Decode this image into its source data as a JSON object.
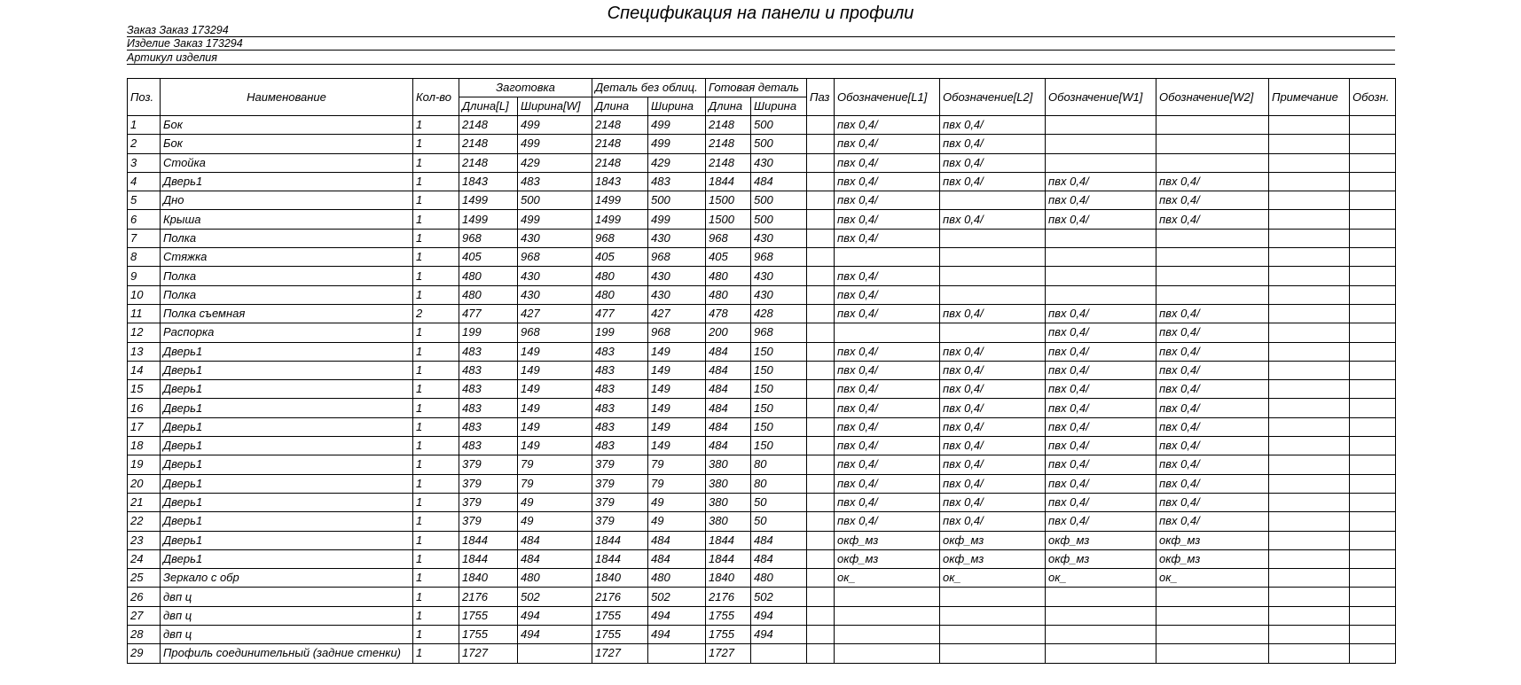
{
  "title": "Спецификация на панели и профили",
  "info": {
    "order": "Заказ Заказ 173294",
    "product": "Изделие Заказ 173294",
    "article": "Артикул изделия"
  },
  "table": {
    "headers": {
      "pos": "Поз.",
      "name": "Наименование",
      "qty": "Кол-во",
      "blank": "Заготовка",
      "blank_length": "Длина[L]",
      "blank_width": "Ширина[W]",
      "raw": "Деталь без облиц.",
      "raw_length": "Длина",
      "raw_width": "Ширина",
      "finished": "Готовая деталь",
      "finished_length": "Длина",
      "finished_width": "Ширина",
      "groove": "Паз",
      "edge_l1": "Обозначение[L1]",
      "edge_l2": "Обозначение[L2]",
      "edge_w1": "Обозначение[W1]",
      "edge_w2": "Обозначение[W2]",
      "note": "Примечание",
      "desig": "Обозн."
    },
    "rows": [
      [
        "1",
        "Бок",
        "1",
        "2148",
        "499",
        "2148",
        "499",
        "2148",
        "500",
        "",
        "пвх 0,4/",
        "пвх 0,4/",
        "",
        "",
        "",
        ""
      ],
      [
        "2",
        "Бок",
        "1",
        "2148",
        "499",
        "2148",
        "499",
        "2148",
        "500",
        "",
        "пвх 0,4/",
        "пвх 0,4/",
        "",
        "",
        "",
        ""
      ],
      [
        "3",
        "Стойка",
        "1",
        "2148",
        "429",
        "2148",
        "429",
        "2148",
        "430",
        "",
        "пвх 0,4/",
        "пвх 0,4/",
        "",
        "",
        "",
        ""
      ],
      [
        "4",
        "Дверь1",
        "1",
        "1843",
        "483",
        "1843",
        "483",
        "1844",
        "484",
        "",
        "пвх 0,4/",
        "пвх 0,4/",
        "пвх 0,4/",
        "пвх 0,4/",
        "",
        ""
      ],
      [
        "5",
        "Дно",
        "1",
        "1499",
        "500",
        "1499",
        "500",
        "1500",
        "500",
        "",
        "пвх 0,4/",
        "",
        "пвх 0,4/",
        "пвх 0,4/",
        "",
        ""
      ],
      [
        "6",
        "Крыша",
        "1",
        "1499",
        "499",
        "1499",
        "499",
        "1500",
        "500",
        "",
        "пвх 0,4/",
        "пвх 0,4/",
        "пвх 0,4/",
        "пвх 0,4/",
        "",
        ""
      ],
      [
        "7",
        "Полка",
        "1",
        "968",
        "430",
        "968",
        "430",
        "968",
        "430",
        "",
        "пвх 0,4/",
        "",
        "",
        "",
        "",
        ""
      ],
      [
        "8",
        "Стяжка",
        "1",
        "405",
        "968",
        "405",
        "968",
        "405",
        "968",
        "",
        "",
        "",
        "",
        "",
        "",
        ""
      ],
      [
        "9",
        "Полка",
        "1",
        "480",
        "430",
        "480",
        "430",
        "480",
        "430",
        "",
        "пвх 0,4/",
        "",
        "",
        "",
        "",
        ""
      ],
      [
        "10",
        "Полка",
        "1",
        "480",
        "430",
        "480",
        "430",
        "480",
        "430",
        "",
        "пвх 0,4/",
        "",
        "",
        "",
        "",
        ""
      ],
      [
        "11",
        "Полка съемная",
        "2",
        "477",
        "427",
        "477",
        "427",
        "478",
        "428",
        "",
        "пвх 0,4/",
        "пвх 0,4/",
        "пвх 0,4/",
        "пвх 0,4/",
        "",
        ""
      ],
      [
        "12",
        "Распорка",
        "1",
        "199",
        "968",
        "199",
        "968",
        "200",
        "968",
        "",
        "",
        "",
        "пвх 0,4/",
        "пвх 0,4/",
        "",
        ""
      ],
      [
        "13",
        "Дверь1",
        "1",
        "483",
        "149",
        "483",
        "149",
        "484",
        "150",
        "",
        "пвх 0,4/",
        "пвх 0,4/",
        "пвх 0,4/",
        "пвх 0,4/",
        "",
        ""
      ],
      [
        "14",
        "Дверь1",
        "1",
        "483",
        "149",
        "483",
        "149",
        "484",
        "150",
        "",
        "пвх 0,4/",
        "пвх 0,4/",
        "пвх 0,4/",
        "пвх 0,4/",
        "",
        ""
      ],
      [
        "15",
        "Дверь1",
        "1",
        "483",
        "149",
        "483",
        "149",
        "484",
        "150",
        "",
        "пвх 0,4/",
        "пвх 0,4/",
        "пвх 0,4/",
        "пвх 0,4/",
        "",
        ""
      ],
      [
        "16",
        "Дверь1",
        "1",
        "483",
        "149",
        "483",
        "149",
        "484",
        "150",
        "",
        "пвх 0,4/",
        "пвх 0,4/",
        "пвх 0,4/",
        "пвх 0,4/",
        "",
        ""
      ],
      [
        "17",
        "Дверь1",
        "1",
        "483",
        "149",
        "483",
        "149",
        "484",
        "150",
        "",
        "пвх 0,4/",
        "пвх 0,4/",
        "пвх 0,4/",
        "пвх 0,4/",
        "",
        ""
      ],
      [
        "18",
        "Дверь1",
        "1",
        "483",
        "149",
        "483",
        "149",
        "484",
        "150",
        "",
        "пвх 0,4/",
        "пвх 0,4/",
        "пвх 0,4/",
        "пвх 0,4/",
        "",
        ""
      ],
      [
        "19",
        "Дверь1",
        "1",
        "379",
        "79",
        "379",
        "79",
        "380",
        "80",
        "",
        "пвх 0,4/",
        "пвх 0,4/",
        "пвх 0,4/",
        "пвх 0,4/",
        "",
        ""
      ],
      [
        "20",
        "Дверь1",
        "1",
        "379",
        "79",
        "379",
        "79",
        "380",
        "80",
        "",
        "пвх 0,4/",
        "пвх 0,4/",
        "пвх 0,4/",
        "пвх 0,4/",
        "",
        ""
      ],
      [
        "21",
        "Дверь1",
        "1",
        "379",
        "49",
        "379",
        "49",
        "380",
        "50",
        "",
        "пвх 0,4/",
        "пвх 0,4/",
        "пвх 0,4/",
        "пвх 0,4/",
        "",
        ""
      ],
      [
        "22",
        "Дверь1",
        "1",
        "379",
        "49",
        "379",
        "49",
        "380",
        "50",
        "",
        "пвх 0,4/",
        "пвх 0,4/",
        "пвх 0,4/",
        "пвх 0,4/",
        "",
        ""
      ],
      [
        "23",
        "Дверь1",
        "1",
        "1844",
        "484",
        "1844",
        "484",
        "1844",
        "484",
        "",
        "окф_мз",
        "окф_мз",
        "окф_мз",
        "окф_мз",
        "",
        ""
      ],
      [
        "24",
        "Дверь1",
        "1",
        "1844",
        "484",
        "1844",
        "484",
        "1844",
        "484",
        "",
        "окф_мз",
        "окф_мз",
        "окф_мз",
        "окф_мз",
        "",
        ""
      ],
      [
        "25",
        "Зеркало с обр",
        "1",
        "1840",
        "480",
        "1840",
        "480",
        "1840",
        "480",
        "",
        "ок_",
        "ок_",
        "ок_",
        "ок_",
        "",
        ""
      ],
      [
        "26",
        "двп ц",
        "1",
        "2176",
        "502",
        "2176",
        "502",
        "2176",
        "502",
        "",
        "",
        "",
        "",
        "",
        "",
        ""
      ],
      [
        "27",
        "двп ц",
        "1",
        "1755",
        "494",
        "1755",
        "494",
        "1755",
        "494",
        "",
        "",
        "",
        "",
        "",
        "",
        ""
      ],
      [
        "28",
        "двп ц",
        "1",
        "1755",
        "494",
        "1755",
        "494",
        "1755",
        "494",
        "",
        "",
        "",
        "",
        "",
        "",
        ""
      ],
      [
        "29",
        "Профиль соединительный (задние стенки)",
        "1",
        "1727",
        "",
        "1727",
        "",
        "1727",
        "",
        "",
        "",
        "",
        "",
        "",
        "",
        ""
      ]
    ]
  }
}
